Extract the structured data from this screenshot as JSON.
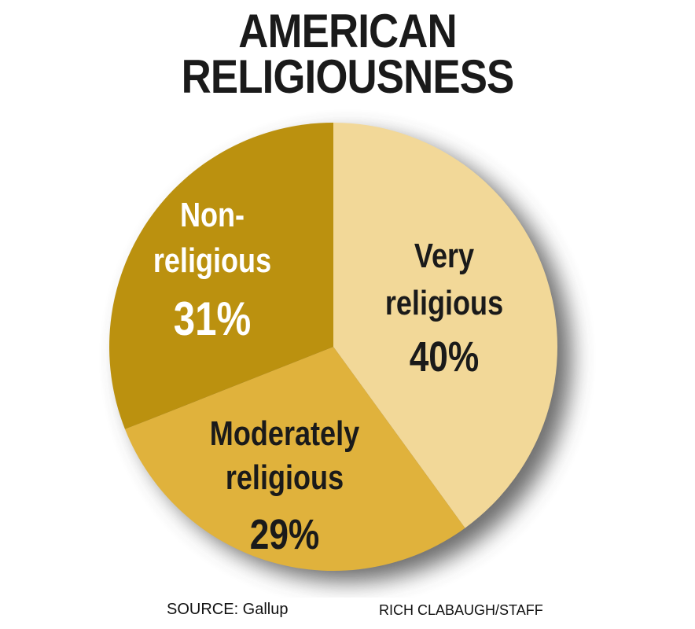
{
  "title": {
    "line1": "AMERICAN",
    "line2": "RELIGIOUSNESS"
  },
  "footer": {
    "source": "SOURCE: Gallup",
    "credit": "RICH CLABAUGH/STAFF"
  },
  "chart_data": {
    "type": "pie",
    "title": "AMERICAN RELIGIOUSNESS",
    "unit": "%",
    "slices": [
      {
        "name": "Very religious",
        "label_lines": [
          "Very",
          "religious"
        ],
        "value": 40,
        "value_label": "40%",
        "color": "#f2d898",
        "text_color": "#1a1a1a"
      },
      {
        "name": "Moderately religious",
        "label_lines": [
          "Moderately",
          "religious"
        ],
        "value": 29,
        "value_label": "29%",
        "color": "#e0b23c",
        "text_color": "#1a1a1a"
      },
      {
        "name": "Non-religious",
        "label_lines": [
          "Non-",
          "religious"
        ],
        "value": 31,
        "value_label": "31%",
        "color": "#bb910f",
        "text_color": "#ffffff"
      }
    ],
    "start_angle_deg": 0,
    "direction": "clockwise",
    "legend": "none",
    "shadow_color": "#4a4a4a"
  }
}
